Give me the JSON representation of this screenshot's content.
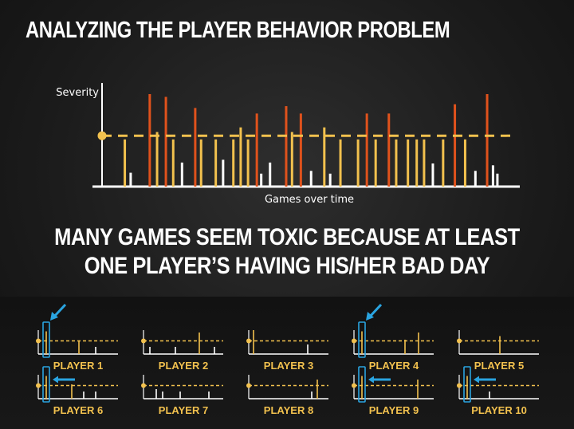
{
  "page": {
    "title": "ANALYZING THE PLAYER BEHAVIOR PROBLEM",
    "headline_line1": "MANY GAMES SEEM TOXIC BECAUSE AT LEAST",
    "headline_line2": "ONE PLAYER’S HAVING HIS/HER BAD DAY"
  },
  "colors": {
    "toxic": "#e0521c",
    "elevated": "#f2c14e",
    "normal": "#ffffff",
    "threshold": "#f2c14e",
    "highlight": "#2aa4e0"
  },
  "chart_data": [
    {
      "type": "bar",
      "ylabel": "Severity",
      "xlabel": "Games over time",
      "ylim": [
        0,
        10
      ],
      "threshold": 5.5,
      "bars": [
        {
          "x": 0.9,
          "y": 5.1
        },
        {
          "x": 1.3,
          "y": 1.5
        },
        {
          "x": 2.6,
          "y": 10.0
        },
        {
          "x": 3.1,
          "y": 5.9
        },
        {
          "x": 3.7,
          "y": 9.7
        },
        {
          "x": 4.2,
          "y": 5.1
        },
        {
          "x": 4.8,
          "y": 2.6
        },
        {
          "x": 5.7,
          "y": 8.5
        },
        {
          "x": 6.1,
          "y": 5.1
        },
        {
          "x": 7.1,
          "y": 5.1
        },
        {
          "x": 7.6,
          "y": 2.9
        },
        {
          "x": 8.3,
          "y": 5.1
        },
        {
          "x": 8.8,
          "y": 6.4
        },
        {
          "x": 9.3,
          "y": 5.1
        },
        {
          "x": 9.9,
          "y": 7.9
        },
        {
          "x": 10.2,
          "y": 1.4
        },
        {
          "x": 10.8,
          "y": 2.6
        },
        {
          "x": 11.9,
          "y": 8.7
        },
        {
          "x": 12.3,
          "y": 5.9
        },
        {
          "x": 12.9,
          "y": 7.9
        },
        {
          "x": 13.6,
          "y": 1.7
        },
        {
          "x": 14.5,
          "y": 6.4
        },
        {
          "x": 14.9,
          "y": 1.4
        },
        {
          "x": 15.6,
          "y": 5.1
        },
        {
          "x": 16.8,
          "y": 5.1
        },
        {
          "x": 17.4,
          "y": 7.9
        },
        {
          "x": 18.0,
          "y": 5.1
        },
        {
          "x": 18.9,
          "y": 7.9
        },
        {
          "x": 19.4,
          "y": 5.1
        },
        {
          "x": 20.2,
          "y": 5.1
        },
        {
          "x": 20.8,
          "y": 5.1
        },
        {
          "x": 21.3,
          "y": 5.1
        },
        {
          "x": 21.9,
          "y": 2.5
        },
        {
          "x": 22.6,
          "y": 5.1
        },
        {
          "x": 23.4,
          "y": 8.9
        },
        {
          "x": 24.1,
          "y": 5.1
        },
        {
          "x": 24.8,
          "y": 1.7
        },
        {
          "x": 25.6,
          "y": 10.0
        },
        {
          "x": 26.0,
          "y": 2.3
        },
        {
          "x": 26.3,
          "y": 1.4
        }
      ]
    },
    {
      "type": "bar",
      "players": [
        {
          "label": "PLAYER 1",
          "highlight": "arrow-diagonal",
          "bars": [
            {
              "x": 0.5,
              "y": 0.0
            },
            {
              "x": 5.1,
              "y": 0.55
            },
            {
              "x": 7.2,
              "y": 0.3
            }
          ]
        },
        {
          "label": "PLAYER 2",
          "highlight": "none",
          "bars": [
            {
              "x": 0.8,
              "y": 0.3
            },
            {
              "x": 4.0,
              "y": 0.3
            },
            {
              "x": 7.0,
              "y": 0.9
            },
            {
              "x": 8.9,
              "y": 0.3
            }
          ]
        },
        {
          "label": "PLAYER 3",
          "highlight": "none",
          "bars": [
            {
              "x": 0.6,
              "y": 1.0
            },
            {
              "x": 7.4,
              "y": 0.4
            }
          ]
        },
        {
          "label": "PLAYER 4",
          "highlight": "arrow-diagonal",
          "bars": [
            {
              "x": 0.5,
              "y": 0.0
            },
            {
              "x": 6.4,
              "y": 0.6
            },
            {
              "x": 8.1,
              "y": 0.9
            }
          ]
        },
        {
          "label": "PLAYER 5",
          "highlight": "none",
          "bars": [
            {
              "x": 5.1,
              "y": 0.75
            }
          ]
        },
        {
          "label": "PLAYER 6",
          "highlight": "arrow-left",
          "bars": [
            {
              "x": 0.5,
              "y": 0.0
            },
            {
              "x": 4.2,
              "y": 0.6
            },
            {
              "x": 5.7,
              "y": 0.3
            },
            {
              "x": 7.2,
              "y": 0.3
            }
          ]
        },
        {
          "label": "PLAYER 7",
          "highlight": "none",
          "bars": [
            {
              "x": 1.6,
              "y": 0.4
            },
            {
              "x": 2.4,
              "y": 0.3
            },
            {
              "x": 4.6,
              "y": 0.3
            },
            {
              "x": 8.2,
              "y": 0.3
            }
          ]
        },
        {
          "label": "PLAYER 8",
          "highlight": "none",
          "bars": [
            {
              "x": 7.9,
              "y": 0.3
            },
            {
              "x": 8.6,
              "y": 0.8
            }
          ]
        },
        {
          "label": "PLAYER 9",
          "highlight": "arrow-left",
          "bars": [
            {
              "x": 0.5,
              "y": 0.0
            },
            {
              "x": 8.0,
              "y": 0.8
            }
          ]
        },
        {
          "label": "PLAYER 10",
          "highlight": "arrow-left",
          "bars": [
            {
              "x": 0.5,
              "y": 0.0
            },
            {
              "x": 3.8,
              "y": 0.3
            }
          ]
        }
      ]
    }
  ]
}
